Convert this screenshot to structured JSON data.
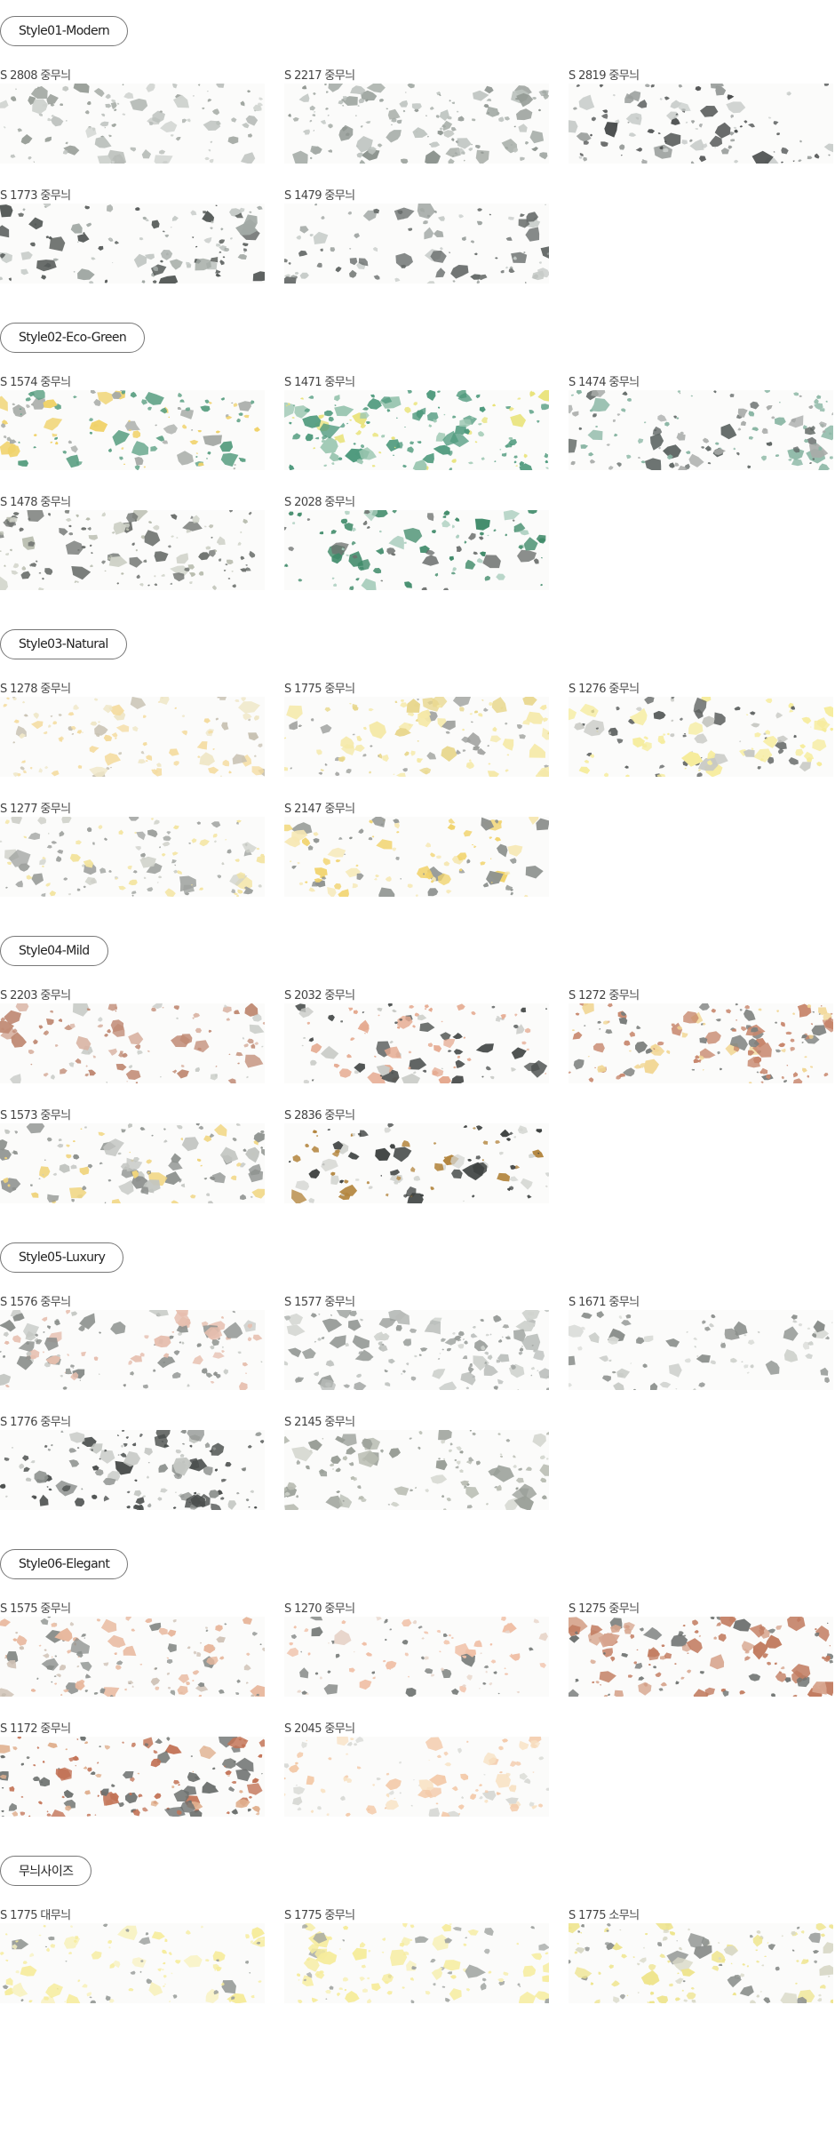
{
  "sections": [
    {
      "title": "Style01-Modern",
      "items": [
        {
          "label": "S 2808 중무늬",
          "colors": [
            "#9aa09a",
            "#b9beba",
            "#cfd3cf"
          ],
          "density": 0.55
        },
        {
          "label": "S 2217 중무늬",
          "colors": [
            "#a3aaa5",
            "#bcc2be",
            "#8f9691"
          ],
          "density": 0.85
        },
        {
          "label": "S 2819 중무늬",
          "colors": [
            "#4c4f4f",
            "#9a9e9c",
            "#c9cdcb"
          ],
          "density": 0.55
        },
        {
          "label": "S 1773 중무늬",
          "colors": [
            "#555a58",
            "#a2a9a5",
            "#c4c9c6"
          ],
          "density": 0.55
        },
        {
          "label": "S 1479 중무늬",
          "colors": [
            "#676c6a",
            "#9ea4a1",
            "#c6cbc8"
          ],
          "density": 0.45
        }
      ]
    },
    {
      "title": "Style02-Eco-Green",
      "items": [
        {
          "label": "S 1574 중무늬",
          "colors": [
            "#5a9f82",
            "#f0d26a",
            "#a6aaa6"
          ],
          "density": 0.65
        },
        {
          "label": "S 1471 중무늬",
          "colors": [
            "#4f9a7d",
            "#e9e37a",
            "#9cc7b2"
          ],
          "density": 0.9
        },
        {
          "label": "S 1474 중무늬",
          "colors": [
            "#8ab6a4",
            "#a8aba9",
            "#5f6664"
          ],
          "density": 0.75
        },
        {
          "label": "S 1478 중무늬",
          "colors": [
            "#6f7370",
            "#b7bbad",
            "#cfd2c8"
          ],
          "density": 0.8
        },
        {
          "label": "S 2028 중무늬",
          "colors": [
            "#3f8a69",
            "#6d716f",
            "#a9cdbd"
          ],
          "density": 0.5
        }
      ]
    },
    {
      "title": "Style03-Natural",
      "items": [
        {
          "label": "S 1278 중무늬",
          "colors": [
            "#f4dca0",
            "#c8c2b3",
            "#efe7c8"
          ],
          "density": 0.6
        },
        {
          "label": "S 1775 중무늬",
          "colors": [
            "#f5e9a8",
            "#9fa19e",
            "#e8d78d"
          ],
          "density": 0.65
        },
        {
          "label": "S 1276 중무늬",
          "colors": [
            "#f6ec9c",
            "#5e6261",
            "#c7c8c3"
          ],
          "density": 0.6
        },
        {
          "label": "S 1277 중무늬",
          "colors": [
            "#9fa29f",
            "#f3e49f",
            "#cfd1ca"
          ],
          "density": 0.7
        },
        {
          "label": "S 2147 중무늬",
          "colors": [
            "#f1d36c",
            "#8e928f",
            "#f6e8b4"
          ],
          "density": 0.55
        }
      ]
    },
    {
      "title": "Style04-Mild",
      "items": [
        {
          "label": "S 2203 중무늬",
          "colors": [
            "#c08a74",
            "#d9b4a4",
            "#c9ccc8"
          ],
          "density": 0.55
        },
        {
          "label": "S 2032 중무늬",
          "colors": [
            "#e5aa90",
            "#4e5251",
            "#c9cbc7"
          ],
          "density": 0.6
        },
        {
          "label": "S 1272 중무늬",
          "colors": [
            "#c7866c",
            "#f1d694",
            "#7c7f7d"
          ],
          "density": 0.9
        },
        {
          "label": "S 1573 중무늬",
          "colors": [
            "#8d918e",
            "#f0d47c",
            "#c2c5c1"
          ],
          "density": 0.7
        },
        {
          "label": "S 2836 중무늬",
          "colors": [
            "#b3853e",
            "#3f4342",
            "#d4d6d2"
          ],
          "density": 0.5
        }
      ]
    },
    {
      "title": "Style05-Luxury",
      "items": [
        {
          "label": "S 1576 중무늬",
          "colors": [
            "#8c908d",
            "#e6beae",
            "#c5c8c4"
          ],
          "density": 0.7
        },
        {
          "label": "S 1577 중무늬",
          "colors": [
            "#9a9e9b",
            "#b8bcb9",
            "#d0d3cf"
          ],
          "density": 0.8
        },
        {
          "label": "S 1671 중무늬",
          "colors": [
            "#8b8f8c",
            "#c9ccc8",
            "#dadcd8"
          ],
          "density": 0.3
        },
        {
          "label": "S 1776 중무늬",
          "colors": [
            "#4b4f4e",
            "#8f9390",
            "#c4c7c3"
          ],
          "density": 0.75
        },
        {
          "label": "S 2145 중무늬",
          "colors": [
            "#9a9f98",
            "#b8bcb2",
            "#d1d4cc"
          ],
          "density": 0.6
        }
      ]
    },
    {
      "title": "Style06-Elegant",
      "items": [
        {
          "label": "S 1575 중무늬",
          "colors": [
            "#e8b89e",
            "#8b8f8c",
            "#cfc2b6"
          ],
          "density": 0.8
        },
        {
          "label": "S 1270 중무늬",
          "colors": [
            "#f0bfa6",
            "#7a7e7c",
            "#e8d6cb"
          ],
          "density": 0.45
        },
        {
          "label": "S 1275 중무늬",
          "colors": [
            "#c27d62",
            "#6f7371",
            "#d7a68f"
          ],
          "density": 0.75
        },
        {
          "label": "S 1172 중무늬",
          "colors": [
            "#c27255",
            "#6c706e",
            "#e0b08f"
          ],
          "density": 0.9
        },
        {
          "label": "S 2045 중무늬",
          "colors": [
            "#f3c9a8",
            "#f8e2c4",
            "#d9dad6"
          ],
          "density": 0.6
        }
      ]
    },
    {
      "title": "무늬사이즈",
      "items": [
        {
          "label": "S 1775 대무늬",
          "colors": [
            "#f6ec9c",
            "#9a9e9b",
            "#f8f2c2"
          ],
          "density": 0.55
        },
        {
          "label": "S 1775 중무늬",
          "colors": [
            "#f6ec9c",
            "#a2a6a3",
            "#f7f0b8"
          ],
          "density": 0.6
        },
        {
          "label": "S 1775 소무늬",
          "colors": [
            "#eee48c",
            "#8d918e",
            "#d9d9c8"
          ],
          "density": 0.85
        }
      ]
    }
  ]
}
